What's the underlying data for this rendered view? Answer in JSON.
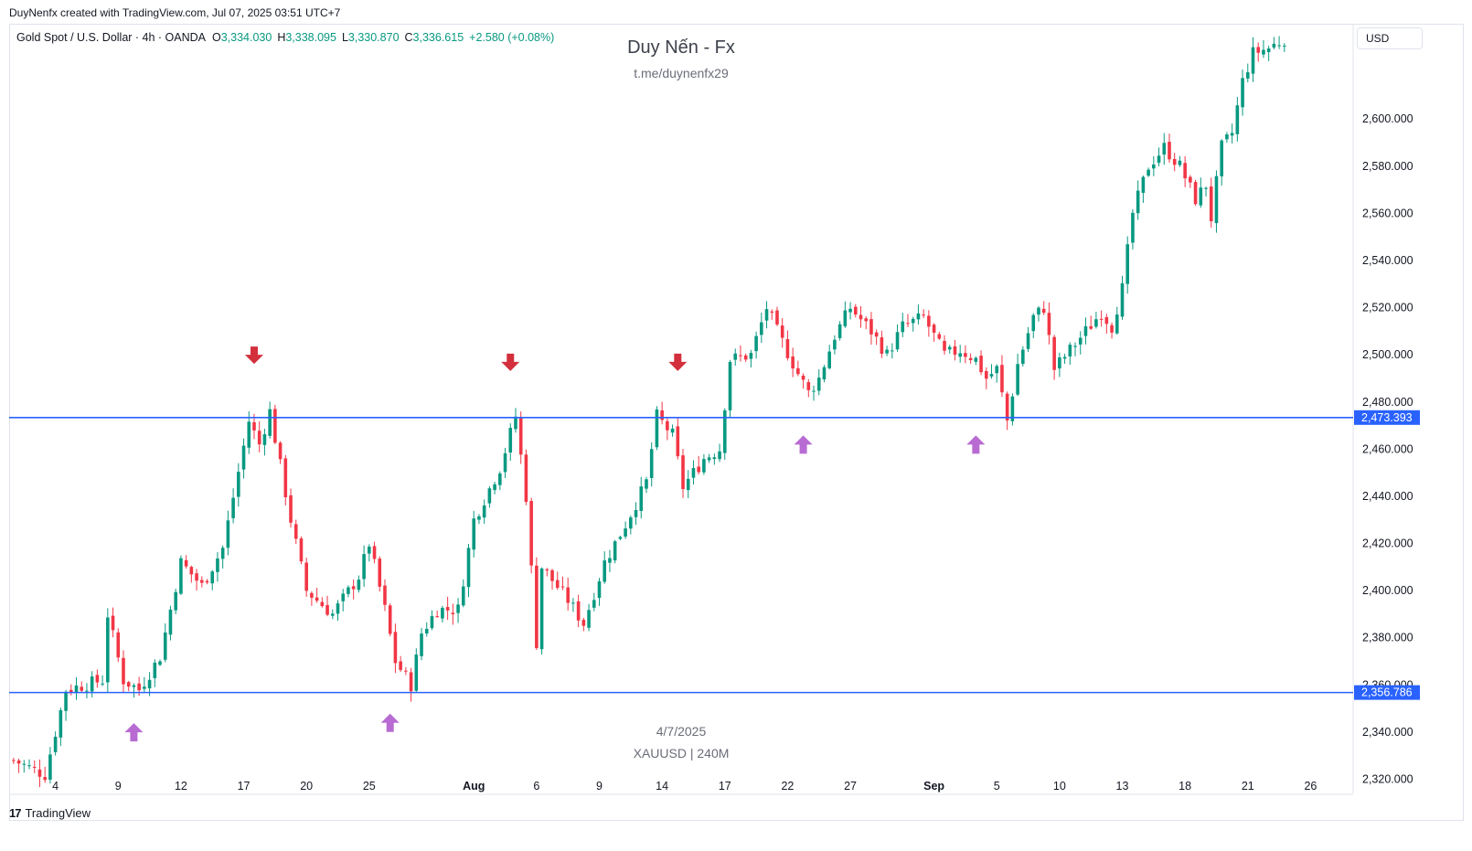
{
  "header": {
    "created_line": "DuyNenfx created with TradingView.com, Jul 07, 2025 03:51 UTC+7",
    "symbol": "Gold Spot / U.S. Dollar · 4h · OANDA",
    "open_label": "O",
    "open": "3,334.030",
    "high_label": "H",
    "high": "3,338.095",
    "low_label": "L",
    "low": "3,330.870",
    "close_label": "C",
    "close": "3,336.615",
    "change": "+2.580 (+0.08%)"
  },
  "watermark": {
    "title": "Duy Nến - Fx",
    "subtitle": "t.me/duynenfx29",
    "date": "4/7/2025",
    "symbol_tf": "XAUUSD | 240M"
  },
  "currency": "USD",
  "brand": {
    "logo": "17",
    "name": "TradingView"
  },
  "colors": {
    "up": "#089981",
    "down": "#f23645",
    "level": "#2962ff",
    "sell_arrow": "#d32f3c",
    "buy_arrow": "#b86bd2"
  },
  "chart_data": {
    "type": "candlestick",
    "ylim": [
      2314,
      2640
    ],
    "y_ticks": [
      "2,320.000",
      "2,340.000",
      "2,360.000",
      "2,380.000",
      "2,400.000",
      "2,420.000",
      "2,440.000",
      "2,460.000",
      "2,480.000",
      "2,500.000",
      "2,520.000",
      "2,540.000",
      "2,560.000",
      "2,580.000",
      "2,600.000"
    ],
    "x_ticks": [
      {
        "label": "4",
        "bar": 8
      },
      {
        "label": "9",
        "bar": 20
      },
      {
        "label": "12",
        "bar": 32
      },
      {
        "label": "17",
        "bar": 44
      },
      {
        "label": "20",
        "bar": 56
      },
      {
        "label": "25",
        "bar": 68
      },
      {
        "label": "Aug",
        "bar": 88,
        "bold": true
      },
      {
        "label": "6",
        "bar": 100
      },
      {
        "label": "9",
        "bar": 112
      },
      {
        "label": "14",
        "bar": 124
      },
      {
        "label": "17",
        "bar": 136
      },
      {
        "label": "22",
        "bar": 148
      },
      {
        "label": "27",
        "bar": 160
      },
      {
        "label": "Sep",
        "bar": 176,
        "bold": true
      },
      {
        "label": "5",
        "bar": 188
      },
      {
        "label": "10",
        "bar": 200
      },
      {
        "label": "13",
        "bar": 212
      },
      {
        "label": "18",
        "bar": 224
      },
      {
        "label": "21",
        "bar": 236
      },
      {
        "label": "26",
        "bar": 248
      }
    ],
    "levels": [
      {
        "value": 2473.393,
        "label": "2,473.393"
      },
      {
        "value": 2356.786,
        "label": "2,356.786"
      }
    ],
    "anchors": [
      [
        0,
        2328
      ],
      [
        6,
        2322
      ],
      [
        10,
        2358
      ],
      [
        17,
        2362
      ],
      [
        18,
        2390
      ],
      [
        21,
        2362
      ],
      [
        24,
        2358
      ],
      [
        28,
        2372
      ],
      [
        32,
        2412
      ],
      [
        36,
        2402
      ],
      [
        40,
        2418
      ],
      [
        45,
        2472
      ],
      [
        47,
        2462
      ],
      [
        49,
        2476
      ],
      [
        53,
        2430
      ],
      [
        56,
        2400
      ],
      [
        61,
        2390
      ],
      [
        66,
        2406
      ],
      [
        68,
        2420
      ],
      [
        71,
        2392
      ],
      [
        73,
        2370
      ],
      [
        76,
        2360
      ],
      [
        78,
        2382
      ],
      [
        81,
        2392
      ],
      [
        85,
        2392
      ],
      [
        88,
        2430
      ],
      [
        93,
        2452
      ],
      [
        96,
        2474
      ],
      [
        98,
        2440
      ],
      [
        100,
        2378
      ],
      [
        101,
        2410
      ],
      [
        106,
        2396
      ],
      [
        109,
        2386
      ],
      [
        113,
        2412
      ],
      [
        117,
        2428
      ],
      [
        121,
        2446
      ],
      [
        123,
        2474
      ],
      [
        126,
        2466
      ],
      [
        128,
        2444
      ],
      [
        130,
        2450
      ],
      [
        132,
        2456
      ],
      [
        135,
        2460
      ],
      [
        137,
        2498
      ],
      [
        141,
        2500
      ],
      [
        144,
        2520
      ],
      [
        146,
        2510
      ],
      [
        150,
        2492
      ],
      [
        152,
        2484
      ],
      [
        154,
        2490
      ],
      [
        157,
        2508
      ],
      [
        160,
        2520
      ],
      [
        164,
        2510
      ],
      [
        167,
        2500
      ],
      [
        170,
        2512
      ],
      [
        174,
        2516
      ],
      [
        178,
        2500
      ],
      [
        181,
        2502
      ],
      [
        184,
        2498
      ],
      [
        186,
        2490
      ],
      [
        188,
        2494
      ],
      [
        190,
        2472
      ],
      [
        192,
        2496
      ],
      [
        195,
        2516
      ],
      [
        197,
        2520
      ],
      [
        199,
        2494
      ],
      [
        202,
        2502
      ],
      [
        205,
        2510
      ],
      [
        208,
        2518
      ],
      [
        210,
        2512
      ],
      [
        212,
        2528
      ],
      [
        214,
        2560
      ],
      [
        217,
        2580
      ],
      [
        220,
        2588
      ],
      [
        223,
        2580
      ],
      [
        226,
        2566
      ],
      [
        228,
        2572
      ],
      [
        229,
        2558
      ],
      [
        231,
        2588
      ],
      [
        233,
        2594
      ],
      [
        235,
        2616
      ],
      [
        237,
        2628
      ],
      [
        240,
        2630
      ],
      [
        243,
        2634
      ]
    ],
    "markers": [
      {
        "kind": "sell",
        "bar": 46,
        "price": 2481
      },
      {
        "kind": "sell",
        "bar": 95,
        "price": 2478
      },
      {
        "kind": "sell",
        "bar": 127,
        "price": 2478
      },
      {
        "kind": "buy",
        "bar": 23,
        "price": 2350
      },
      {
        "kind": "buy",
        "bar": 72,
        "price": 2354
      },
      {
        "kind": "buy",
        "bar": 151,
        "price": 2472
      },
      {
        "kind": "buy",
        "bar": 184,
        "price": 2472
      }
    ]
  }
}
